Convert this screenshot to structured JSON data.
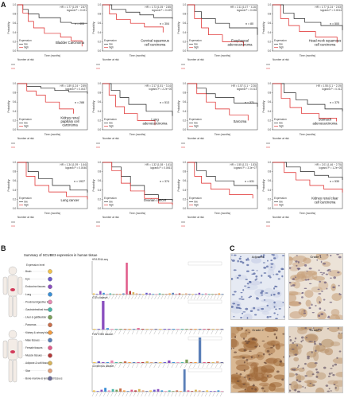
{
  "panels": {
    "a": "A",
    "b": "B",
    "c": "C"
  },
  "km_common": {
    "ylabel": "Probability",
    "xlabel": "Time (months)",
    "legend_title": "Expression",
    "legend_low": "low",
    "legend_high": "high",
    "risk_label": "Number at risk",
    "colors": {
      "low": "#222222",
      "high": "#dd2222"
    }
  },
  "km_plots": [
    {
      "stats": "HR = 1.77 (1.09 − 2.87)",
      "logrank": "logrank P = 0.021",
      "n": "n = 405",
      "cancer": "Bladder Carcinoma",
      "low": [
        [
          0,
          1
        ],
        [
          10,
          0.9
        ],
        [
          20,
          0.8
        ],
        [
          40,
          0.72
        ],
        [
          60,
          0.72
        ],
        [
          80,
          0.62
        ],
        [
          100,
          0.6
        ],
        [
          130,
          0.6
        ]
      ],
      "high": [
        [
          0,
          1
        ],
        [
          10,
          0.82
        ],
        [
          20,
          0.64
        ],
        [
          30,
          0.5
        ],
        [
          50,
          0.38
        ],
        [
          80,
          0.3
        ],
        [
          100,
          0.22
        ],
        [
          120,
          0.1
        ]
      ]
    },
    {
      "stats": "HR = 1.73 (1.05 − 2.85)",
      "logrank": "logrank P = 0.029",
      "n": "n = 304",
      "cancer": "Cervical squamous cell carcinoma",
      "low": [
        [
          0,
          1
        ],
        [
          20,
          0.9
        ],
        [
          50,
          0.84
        ],
        [
          80,
          0.78
        ],
        [
          110,
          0.72
        ],
        [
          150,
          0.7
        ]
      ],
      "high": [
        [
          0,
          1
        ],
        [
          15,
          0.8
        ],
        [
          30,
          0.68
        ],
        [
          60,
          0.6
        ],
        [
          90,
          0.52
        ],
        [
          130,
          0.4
        ]
      ]
    },
    {
      "stats": "HR = 2.11 (1.07 − 4.16)",
      "logrank": "logrank P = 0.028",
      "n": "n = 80",
      "cancer": "Esophageal adenocarcinoma",
      "low": [
        [
          0,
          1
        ],
        [
          5,
          0.85
        ],
        [
          10,
          0.7
        ],
        [
          20,
          0.6
        ],
        [
          30,
          0.5
        ],
        [
          50,
          0.35
        ]
      ],
      "high": [
        [
          0,
          1
        ],
        [
          5,
          0.7
        ],
        [
          10,
          0.5
        ],
        [
          15,
          0.35
        ],
        [
          25,
          0.2
        ],
        [
          40,
          0.1
        ]
      ]
    },
    {
      "stats": "HR = 1.77 (1.24 − 2.53)",
      "logrank": "logrank P = 0.0014",
      "n": "n = 500",
      "cancer": "Head-neck squamous cell carcinoma",
      "low": [
        [
          0,
          1
        ],
        [
          20,
          0.82
        ],
        [
          40,
          0.7
        ],
        [
          60,
          0.62
        ],
        [
          90,
          0.55
        ],
        [
          130,
          0.45
        ]
      ],
      "high": [
        [
          0,
          1
        ],
        [
          15,
          0.7
        ],
        [
          30,
          0.55
        ],
        [
          50,
          0.42
        ],
        [
          80,
          0.3
        ],
        [
          120,
          0.18
        ]
      ]
    },
    {
      "stats": "HR = 1.89 (1.24 − 2.89)",
      "logrank": "logrank P = 0.0027",
      "n": "n = 288",
      "cancer": "Kidney renal papillary cell carcinoma",
      "low": [
        [
          0,
          1
        ],
        [
          20,
          0.94
        ],
        [
          50,
          0.9
        ],
        [
          80,
          0.85
        ],
        [
          110,
          0.82
        ],
        [
          150,
          0.78
        ]
      ],
      "high": [
        [
          0,
          1
        ],
        [
          20,
          0.84
        ],
        [
          40,
          0.75
        ],
        [
          60,
          0.6
        ],
        [
          90,
          0.45
        ],
        [
          120,
          0.35
        ]
      ]
    },
    {
      "stats": "HR = 2.17 (1.51 − 3.14)",
      "logrank": "logrank P = 2.2e−05",
      "n": "n = 513",
      "cancer": "Lung adenocarcinoma",
      "low": [
        [
          0,
          1
        ],
        [
          20,
          0.85
        ],
        [
          40,
          0.7
        ],
        [
          60,
          0.55
        ],
        [
          100,
          0.4
        ],
        [
          160,
          0.3
        ]
      ],
      "high": [
        [
          0,
          1
        ],
        [
          15,
          0.75
        ],
        [
          30,
          0.5
        ],
        [
          50,
          0.35
        ],
        [
          80,
          0.2
        ],
        [
          120,
          0.1
        ]
      ]
    },
    {
      "stats": "HR = 1.57 (1.1 − 2.26)",
      "logrank": "logrank P = 0.013",
      "n": "n = 371",
      "cancer": "Sarcoma",
      "low": [
        [
          0,
          1
        ],
        [
          20,
          0.9
        ],
        [
          40,
          0.78
        ],
        [
          60,
          0.7
        ],
        [
          100,
          0.58
        ],
        [
          150,
          0.5
        ]
      ],
      "high": [
        [
          0,
          1
        ],
        [
          20,
          0.78
        ],
        [
          40,
          0.6
        ],
        [
          60,
          0.45
        ],
        [
          90,
          0.32
        ],
        [
          130,
          0.2
        ]
      ]
    },
    {
      "stats": "HR = 1.55 (1.1 − 2.19)",
      "logrank": "logrank P = 0.011",
      "n": "n = 375",
      "cancer": "Stomach adenocarcinoma",
      "low": [
        [
          0,
          1
        ],
        [
          20,
          0.8
        ],
        [
          40,
          0.65
        ],
        [
          60,
          0.55
        ],
        [
          90,
          0.45
        ],
        [
          120,
          0.4
        ]
      ],
      "high": [
        [
          0,
          1
        ],
        [
          15,
          0.68
        ],
        [
          30,
          0.48
        ],
        [
          50,
          0.35
        ],
        [
          80,
          0.25
        ],
        [
          110,
          0.18
        ]
      ]
    },
    {
      "stats": "HR = 1.34 (1.09 − 1.64)",
      "logrank": "logrank P = 0.0046",
      "n": "n = 1927",
      "cancer": "Lung cancer",
      "low": [
        [
          0,
          1
        ],
        [
          30,
          0.8
        ],
        [
          60,
          0.65
        ],
        [
          100,
          0.5
        ],
        [
          150,
          0.4
        ],
        [
          200,
          0.35
        ]
      ],
      "high": [
        [
          0,
          1
        ],
        [
          25,
          0.7
        ],
        [
          50,
          0.5
        ],
        [
          90,
          0.36
        ],
        [
          140,
          0.26
        ],
        [
          200,
          0.2
        ]
      ]
    },
    {
      "stats": "HR = 1.32 (1.08 − 1.61)",
      "logrank": "logrank P = 0.0061",
      "n": "n = 374",
      "cancer": "Ovarian cancer",
      "low": [
        [
          0,
          1
        ],
        [
          20,
          0.9
        ],
        [
          40,
          0.7
        ],
        [
          60,
          0.5
        ],
        [
          90,
          0.3
        ],
        [
          120,
          0.2
        ],
        [
          150,
          0.15
        ]
      ],
      "high": [
        [
          0,
          1
        ],
        [
          20,
          0.82
        ],
        [
          40,
          0.55
        ],
        [
          60,
          0.38
        ],
        [
          90,
          0.22
        ],
        [
          120,
          0.12
        ],
        [
          150,
          0.08
        ]
      ]
    },
    {
      "stats": "HR = 1.55 (1.31 − 1.83)",
      "logrank": "logrank P = 3.3e−07",
      "n": "n = 631",
      "cancer": "",
      "low": [
        [
          0,
          1
        ],
        [
          20,
          0.82
        ],
        [
          40,
          0.7
        ],
        [
          60,
          0.6
        ],
        [
          100,
          0.5
        ],
        [
          150,
          0.42
        ]
      ],
      "high": [
        [
          0,
          1
        ],
        [
          15,
          0.7
        ],
        [
          30,
          0.55
        ],
        [
          50,
          0.42
        ],
        [
          90,
          0.3
        ],
        [
          140,
          0.22
        ]
      ]
    },
    {
      "stats": "HR = 2.01 (1.46 − 2.75)",
      "logrank": "logrank P = 1.2e−05",
      "n": "n = 530",
      "cancer": "Kidney renal clear cell carcinoma",
      "low": [
        [
          0,
          1
        ],
        [
          30,
          0.9
        ],
        [
          60,
          0.8
        ],
        [
          90,
          0.72
        ],
        [
          120,
          0.68
        ],
        [
          150,
          0.62
        ]
      ],
      "high": [
        [
          0,
          1
        ],
        [
          25,
          0.78
        ],
        [
          50,
          0.62
        ],
        [
          80,
          0.5
        ],
        [
          110,
          0.42
        ],
        [
          150,
          0.35
        ]
      ]
    }
  ],
  "panel_b": {
    "title": "Summary of SCUBE3 expression in human tissue",
    "legend_title": "Expression level",
    "tissue_legend": [
      "Brain",
      "Eye",
      "Endocrine tissues",
      "Lung",
      "Proximal digestive tract",
      "Gastrointestinal tract",
      "Liver & gallbladder",
      "Pancreas",
      "Kidney & urinary bladder",
      "Male tissues",
      "Female tissues",
      "Muscle tissues",
      "Adipose & soft tissue",
      "Skin",
      "Bone marrow & lymphoid tissues"
    ],
    "tissue_colors": [
      "#f2c24b",
      "#6a5acd",
      "#8a4fbf",
      "#3a8fd6",
      "#e88bb3",
      "#48b5a8",
      "#7ba05b",
      "#c96f4b",
      "#f39a3d",
      "#5a7fb8",
      "#e05a8a",
      "#b53a3a",
      "#d8b45a",
      "#e2a07a",
      "#6a6a9a"
    ],
    "charts": [
      {
        "title": "HPA RNA-seq",
        "values": [
          2,
          1,
          6,
          3,
          1,
          2,
          1,
          1,
          1,
          2,
          55,
          6,
          4,
          2,
          1,
          1,
          3,
          2,
          1,
          1,
          2,
          1,
          1,
          2,
          3,
          1,
          2,
          1,
          2,
          1,
          1,
          1,
          3,
          1,
          2,
          1,
          1,
          1,
          2,
          1
        ]
      },
      {
        "title": "GTEx dataset",
        "values": [
          1,
          1,
          40,
          2,
          1,
          1,
          1,
          1,
          1,
          1,
          2,
          1,
          1,
          1,
          1,
          1,
          1,
          1,
          1,
          1,
          1,
          1,
          1,
          1,
          1,
          1,
          1,
          1,
          1,
          1
        ]
      },
      {
        "title": "FANTOM5 dataset",
        "values": [
          1,
          2,
          1,
          1,
          3,
          1,
          1,
          2,
          1,
          1,
          1,
          1,
          2,
          1,
          1,
          1,
          1,
          3,
          1,
          1,
          1,
          4,
          1,
          1,
          30,
          1,
          1,
          1,
          2,
          1
        ]
      },
      {
        "title": "Consensus dataset",
        "values": [
          2,
          1,
          3,
          6,
          2,
          4,
          3,
          5,
          2,
          1,
          3,
          2,
          4,
          2,
          1,
          2,
          3,
          4,
          2,
          1,
          2,
          1,
          2,
          1,
          35,
          2,
          1,
          3,
          2,
          1,
          2,
          1,
          1,
          2,
          1
        ]
      }
    ]
  },
  "panel_c": {
    "labels": [
      "Adjacent",
      "Grade 1",
      "Grade 2",
      "Grade 3"
    ]
  }
}
